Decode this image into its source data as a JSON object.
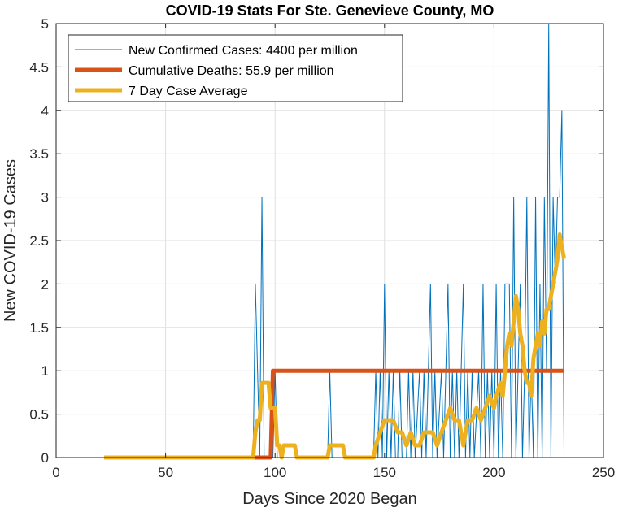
{
  "chart_data": {
    "type": "line",
    "title": "COVID-19 Stats For Ste. Genevieve County, MO",
    "xlabel": "Days Since 2020 Began",
    "ylabel": "New COVID-19 Cases",
    "xlim": [
      0,
      250
    ],
    "ylim": [
      0,
      5
    ],
    "xticks": [
      0,
      50,
      100,
      150,
      200,
      250
    ],
    "yticks": [
      0,
      0.5,
      1,
      1.5,
      2,
      2.5,
      3,
      3.5,
      4,
      4.5,
      5
    ],
    "grid": true,
    "legend_position": "top-left",
    "series": [
      {
        "name": "New Confirmed Cases: 4400 per million",
        "color": "#0072BD",
        "points": [
          [
            22,
            0
          ],
          [
            90,
            0
          ],
          [
            91,
            2
          ],
          [
            92,
            1
          ],
          [
            93,
            0
          ],
          [
            94,
            3
          ],
          [
            95,
            0
          ],
          [
            97,
            0
          ],
          [
            98,
            0
          ],
          [
            99,
            0
          ],
          [
            100,
            1
          ],
          [
            101,
            0
          ],
          [
            102,
            0
          ],
          [
            124,
            0
          ],
          [
            125,
            1
          ],
          [
            126,
            0
          ],
          [
            145,
            0
          ],
          [
            146,
            1
          ],
          [
            147,
            0
          ],
          [
            148,
            1
          ],
          [
            149,
            0
          ],
          [
            150,
            2
          ],
          [
            151,
            0
          ],
          [
            152,
            1
          ],
          [
            153,
            0
          ],
          [
            154,
            1
          ],
          [
            155,
            0
          ],
          [
            156,
            0
          ],
          [
            157,
            1
          ],
          [
            158,
            0
          ],
          [
            160,
            0
          ],
          [
            161,
            1
          ],
          [
            162,
            0
          ],
          [
            163,
            1
          ],
          [
            164,
            0
          ],
          [
            166,
            1
          ],
          [
            167,
            0
          ],
          [
            168,
            1
          ],
          [
            169,
            0
          ],
          [
            171,
            2
          ],
          [
            172,
            0
          ],
          [
            173,
            1
          ],
          [
            174,
            0
          ],
          [
            176,
            1
          ],
          [
            177,
            0
          ],
          [
            179,
            2
          ],
          [
            180,
            0
          ],
          [
            181,
            1
          ],
          [
            182,
            0
          ],
          [
            183,
            1
          ],
          [
            184,
            0
          ],
          [
            186,
            2
          ],
          [
            187,
            0
          ],
          [
            188,
            1
          ],
          [
            189,
            0
          ],
          [
            190,
            1
          ],
          [
            191,
            0
          ],
          [
            193,
            1
          ],
          [
            194,
            0
          ],
          [
            195,
            2
          ],
          [
            196,
            0
          ],
          [
            197,
            1
          ],
          [
            198,
            0
          ],
          [
            199,
            1
          ],
          [
            200,
            0
          ],
          [
            201,
            2
          ],
          [
            202,
            0
          ],
          [
            203,
            1
          ],
          [
            204,
            0
          ],
          [
            205,
            2
          ],
          [
            206,
            2
          ],
          [
            207,
            2
          ],
          [
            208,
            0
          ],
          [
            209,
            3
          ],
          [
            210,
            0
          ],
          [
            211,
            1
          ],
          [
            212,
            2
          ],
          [
            213,
            0
          ],
          [
            214,
            1
          ],
          [
            215,
            3
          ],
          [
            216,
            0
          ],
          [
            217,
            1
          ],
          [
            218,
            0
          ],
          [
            219,
            3
          ],
          [
            220,
            0
          ],
          [
            221,
            2
          ],
          [
            222,
            0
          ],
          [
            223,
            3
          ],
          [
            224,
            1
          ],
          [
            225,
            5
          ],
          [
            226,
            0
          ],
          [
            227,
            3
          ],
          [
            228,
            2
          ],
          [
            229,
            3
          ],
          [
            230,
            3
          ],
          [
            231,
            4
          ],
          [
            232,
            0
          ]
        ]
      },
      {
        "name": "Cumulative Deaths: 55.9 per million",
        "color": "#D95319",
        "points": [
          [
            22,
            0
          ],
          [
            98,
            0
          ],
          [
            99,
            1
          ],
          [
            232,
            1
          ]
        ]
      },
      {
        "name": "7 Day Case Average",
        "color": "#EDB120",
        "points": [
          [
            22,
            0
          ],
          [
            90,
            0
          ],
          [
            91,
            0.29
          ],
          [
            92,
            0.43
          ],
          [
            93,
            0.43
          ],
          [
            94,
            0.86
          ],
          [
            95,
            0.86
          ],
          [
            97,
            0.86
          ],
          [
            98,
            0.57
          ],
          [
            99,
            0.57
          ],
          [
            100,
            0.57
          ],
          [
            101,
            0.14
          ],
          [
            102,
            0.14
          ],
          [
            103,
            0
          ],
          [
            104,
            0.14
          ],
          [
            109,
            0.14
          ],
          [
            110,
            0
          ],
          [
            124,
            0
          ],
          [
            125,
            0.14
          ],
          [
            131,
            0.14
          ],
          [
            132,
            0
          ],
          [
            145,
            0
          ],
          [
            146,
            0.14
          ],
          [
            148,
            0.29
          ],
          [
            150,
            0.43
          ],
          [
            152,
            0.43
          ],
          [
            154,
            0.43
          ],
          [
            156,
            0.29
          ],
          [
            158,
            0.29
          ],
          [
            160,
            0.14
          ],
          [
            162,
            0.29
          ],
          [
            164,
            0.14
          ],
          [
            166,
            0.14
          ],
          [
            168,
            0.29
          ],
          [
            170,
            0.29
          ],
          [
            172,
            0.29
          ],
          [
            174,
            0.14
          ],
          [
            176,
            0.29
          ],
          [
            178,
            0.43
          ],
          [
            180,
            0.57
          ],
          [
            182,
            0.43
          ],
          [
            184,
            0.43
          ],
          [
            186,
            0.14
          ],
          [
            188,
            0.43
          ],
          [
            190,
            0.43
          ],
          [
            192,
            0.57
          ],
          [
            194,
            0.43
          ],
          [
            196,
            0.57
          ],
          [
            198,
            0.71
          ],
          [
            200,
            0.57
          ],
          [
            201,
            0.71
          ],
          [
            203,
            0.86
          ],
          [
            204,
            0.71
          ],
          [
            205,
            1.0
          ],
          [
            206,
            1.29
          ],
          [
            207,
            1.43
          ],
          [
            208,
            1.29
          ],
          [
            209,
            1.57
          ],
          [
            210,
            1.86
          ],
          [
            211,
            1.71
          ],
          [
            212,
            1.43
          ],
          [
            213,
            1.29
          ],
          [
            214,
            1.0
          ],
          [
            215,
            0.86
          ],
          [
            216,
            0.86
          ],
          [
            217,
            0.71
          ],
          [
            218,
            1.14
          ],
          [
            219,
            1.29
          ],
          [
            220,
            1.43
          ],
          [
            221,
            1.29
          ],
          [
            222,
            1.57
          ],
          [
            223,
            1.43
          ],
          [
            224,
            1.71
          ],
          [
            225,
            1.71
          ],
          [
            226,
            1.86
          ],
          [
            227,
            2.0
          ],
          [
            228,
            2.14
          ],
          [
            229,
            2.29
          ],
          [
            230,
            2.57
          ],
          [
            231,
            2.43
          ],
          [
            232,
            2.29
          ]
        ]
      }
    ]
  }
}
